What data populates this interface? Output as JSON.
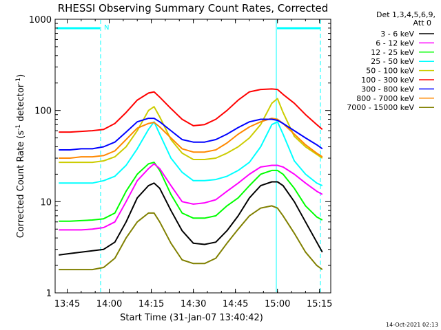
{
  "chart_data": {
    "type": "line",
    "title": "RHESSI Observing Summary Count Rates, Corrected",
    "xlabel": "Start Time (31-Jan-07 13:40:42)",
    "ylabel_main": "Corrected Count Rate (s",
    "ylabel_sup1": "-1",
    "ylabel_mid": " detector",
    "ylabel_sup2": "-1",
    "ylabel_end": ")",
    "yscale": "log",
    "xlim": [
      "13:40:42",
      "15:19"
    ],
    "ylim": [
      1,
      1000
    ],
    "x_tick_labels": [
      "13:45",
      "14:00",
      "14:15",
      "14:30",
      "14:45",
      "15:00",
      "15:15"
    ],
    "x_tick_minutes": [
      825,
      840,
      855,
      870,
      885,
      900,
      915
    ],
    "x_min_minutes": 820.7,
    "x_max_minutes": 919,
    "y_tick_labels": [
      "1",
      "10",
      "100",
      "1000"
    ],
    "y_tick_values": [
      1,
      10,
      100,
      1000
    ],
    "legend_header_1": "Det 1,3,4,5,6,9,",
    "legend_header_2": "Att 0",
    "legend_placement": "right",
    "attenuator_marker": "N",
    "footer_date": "14-Oct-2021 02:13",
    "x_sample_minutes": [
      822,
      826,
      830,
      834,
      838,
      842,
      846,
      850,
      854,
      856,
      858,
      862,
      866,
      870,
      874,
      878,
      882,
      886,
      890,
      894,
      898,
      900,
      902,
      906,
      910,
      914,
      916
    ],
    "series": [
      {
        "name": "3 - 6 keV",
        "color": "#000000",
        "values": [
          2.6,
          2.7,
          2.8,
          2.9,
          3.0,
          3.6,
          6.0,
          11,
          15,
          16,
          14,
          8,
          4.8,
          3.5,
          3.4,
          3.6,
          4.8,
          7,
          11,
          15,
          16.5,
          16.5,
          15,
          10,
          6,
          3.6,
          2.8
        ]
      },
      {
        "name": "6 - 12 keV",
        "color": "#ff00ff",
        "values": [
          4.9,
          4.9,
          4.9,
          5.0,
          5.2,
          6.0,
          10,
          17,
          23,
          26,
          23,
          15,
          10,
          9.4,
          9.7,
          10.5,
          13,
          16,
          20,
          24,
          25,
          25,
          24,
          20,
          16,
          13,
          12
        ]
      },
      {
        "name": "12 - 25 keV",
        "color": "#00ff00",
        "values": [
          6.1,
          6.1,
          6.2,
          6.3,
          6.5,
          7.5,
          13,
          20,
          26,
          27,
          22,
          12,
          7.5,
          6.6,
          6.6,
          7.0,
          9,
          11,
          15,
          20,
          22,
          22,
          20,
          14,
          9,
          6.8,
          6.3
        ]
      },
      {
        "name": "25 - 50 keV",
        "color": "#00ffff",
        "values": [
          16,
          16,
          16,
          16,
          17,
          19,
          25,
          38,
          62,
          75,
          55,
          30,
          21,
          17,
          17,
          17.5,
          19,
          22,
          27,
          40,
          70,
          75,
          55,
          28,
          20,
          16,
          15
        ]
      },
      {
        "name": "50 - 100 keV",
        "color": "#cccc00",
        "values": [
          27,
          27,
          27,
          27,
          28,
          31,
          40,
          60,
          100,
          110,
          85,
          48,
          34,
          29,
          29,
          30,
          34,
          40,
          50,
          70,
          120,
          135,
          95,
          52,
          40,
          33,
          30
        ]
      },
      {
        "name": "100 - 300 keV",
        "color": "#ff0000",
        "values": [
          58,
          58,
          59,
          60,
          62,
          72,
          95,
          130,
          155,
          160,
          140,
          105,
          80,
          68,
          70,
          80,
          100,
          130,
          160,
          170,
          172,
          170,
          150,
          120,
          90,
          70,
          62
        ]
      },
      {
        "name": "300 - 800 keV",
        "color": "#0000ff",
        "values": [
          37,
          37,
          38,
          38,
          40,
          45,
          58,
          75,
          82,
          82,
          75,
          60,
          48,
          45,
          45,
          48,
          55,
          65,
          75,
          80,
          80,
          78,
          72,
          60,
          50,
          42,
          38
        ]
      },
      {
        "name": "800 - 7000 keV",
        "color": "#ff8800",
        "values": [
          30,
          30,
          31,
          31,
          32,
          36,
          48,
          64,
          72,
          74,
          66,
          50,
          38,
          35,
          35,
          37,
          44,
          55,
          66,
          75,
          82,
          80,
          72,
          55,
          42,
          34,
          31
        ]
      },
      {
        "name": "7000 - 15000 keV",
        "color": "#808000",
        "values": [
          1.8,
          1.8,
          1.8,
          1.8,
          1.9,
          2.4,
          4,
          6,
          7.5,
          7.5,
          6,
          3.5,
          2.3,
          2.1,
          2.1,
          2.4,
          3.5,
          5,
          7,
          8.5,
          9,
          8.5,
          7,
          4.5,
          2.8,
          2.0,
          1.8
        ]
      }
    ],
    "grid": false
  }
}
